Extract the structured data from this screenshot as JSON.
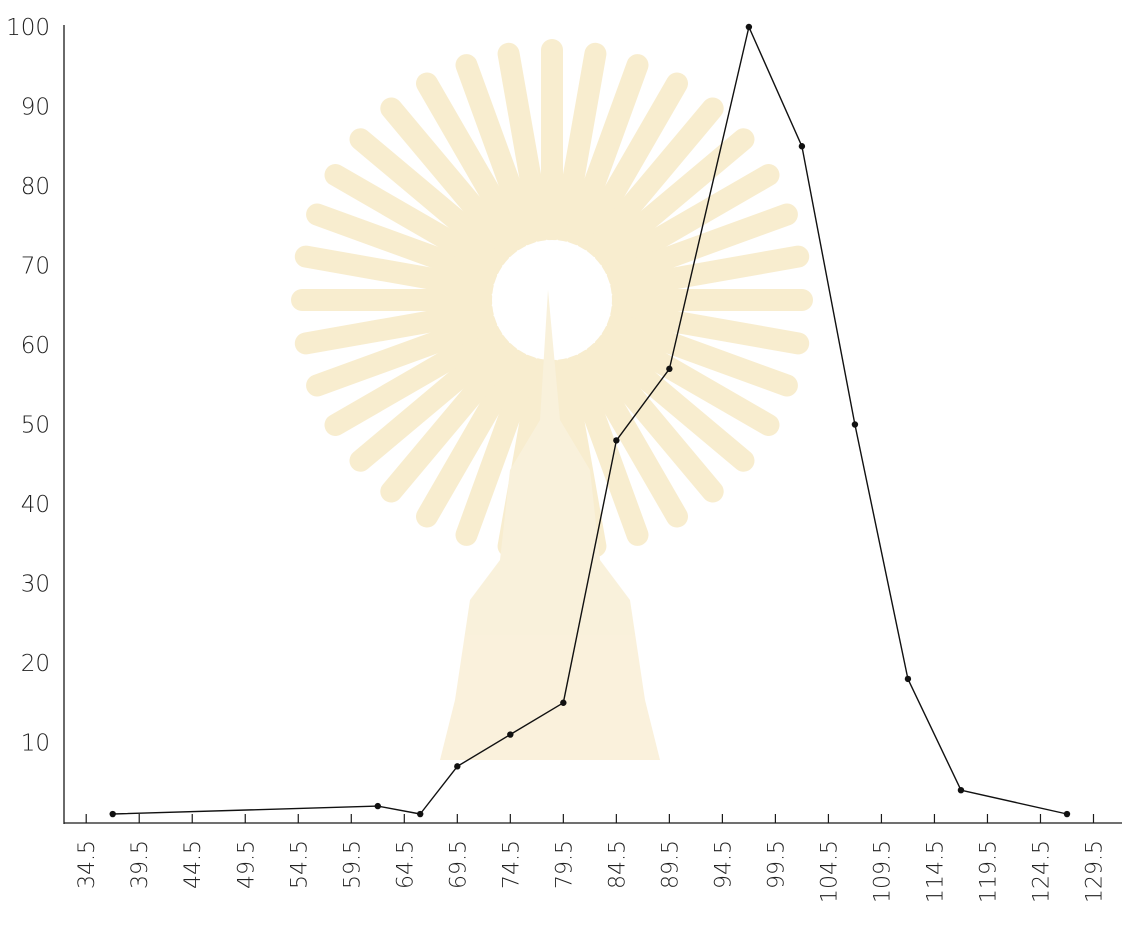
{
  "chart_data": {
    "type": "line",
    "title": "",
    "xlabel": "",
    "ylabel": "",
    "x_tick_labels": [
      "34.5",
      "39.5",
      "44.5",
      "49.5",
      "54.5",
      "59.5",
      "64.5",
      "69.5",
      "74.5",
      "79.5",
      "84.5",
      "89.5",
      "94.5",
      "99.5",
      "104.5",
      "109.5",
      "114.5",
      "119.5",
      "124.5",
      "129.5"
    ],
    "y_tick_labels": [
      "10",
      "20",
      "30",
      "40",
      "50",
      "60",
      "70",
      "80",
      "90",
      "100"
    ],
    "xlim": [
      32.5,
      132
    ],
    "ylim": [
      0,
      100
    ],
    "grid": false,
    "legend": "none",
    "series": [
      {
        "x": [
          37,
          62,
          66,
          69.5,
          74.5,
          79.5,
          84.5,
          89.5,
          97,
          102,
          107,
          112,
          117,
          127
        ],
        "y": [
          1,
          2,
          1,
          7,
          11,
          15,
          48,
          57,
          100,
          85,
          50,
          18,
          4,
          1
        ]
      }
    ],
    "colors": {
      "line": "#111111",
      "axis": "#1a1a1a",
      "text": "#222222"
    }
  }
}
